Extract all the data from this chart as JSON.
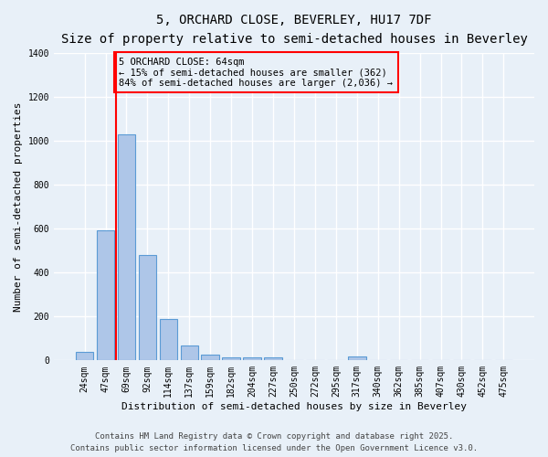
{
  "title1": "5, ORCHARD CLOSE, BEVERLEY, HU17 7DF",
  "title2": "Size of property relative to semi-detached houses in Beverley",
  "xlabel": "Distribution of semi-detached houses by size in Beverley",
  "ylabel": "Number of semi-detached properties",
  "bar_labels": [
    "24sqm",
    "47sqm",
    "69sqm",
    "92sqm",
    "114sqm",
    "137sqm",
    "159sqm",
    "182sqm",
    "204sqm",
    "227sqm",
    "250sqm",
    "272sqm",
    "295sqm",
    "317sqm",
    "340sqm",
    "362sqm",
    "385sqm",
    "407sqm",
    "430sqm",
    "452sqm",
    "475sqm"
  ],
  "bar_values": [
    40,
    590,
    1030,
    480,
    190,
    70,
    25,
    15,
    15,
    15,
    0,
    0,
    0,
    20,
    0,
    0,
    0,
    0,
    0,
    0,
    0
  ],
  "bar_color": "#aec6e8",
  "bar_edge_color": "#5b9bd5",
  "background_color": "#e8f0f8",
  "grid_color": "#ffffff",
  "red_line_x": 1.5,
  "annotation_text": "5 ORCHARD CLOSE: 64sqm\n← 15% of semi-detached houses are smaller (362)\n84% of semi-detached houses are larger (2,036) →",
  "ylim": [
    0,
    1400
  ],
  "yticks": [
    0,
    200,
    400,
    600,
    800,
    1000,
    1200,
    1400
  ],
  "footer1": "Contains HM Land Registry data © Crown copyright and database right 2025.",
  "footer2": "Contains public sector information licensed under the Open Government Licence v3.0.",
  "title1_fontsize": 10,
  "title2_fontsize": 9,
  "xlabel_fontsize": 8,
  "ylabel_fontsize": 8,
  "tick_fontsize": 7,
  "annot_fontsize": 7.5,
  "footer_fontsize": 6.5
}
